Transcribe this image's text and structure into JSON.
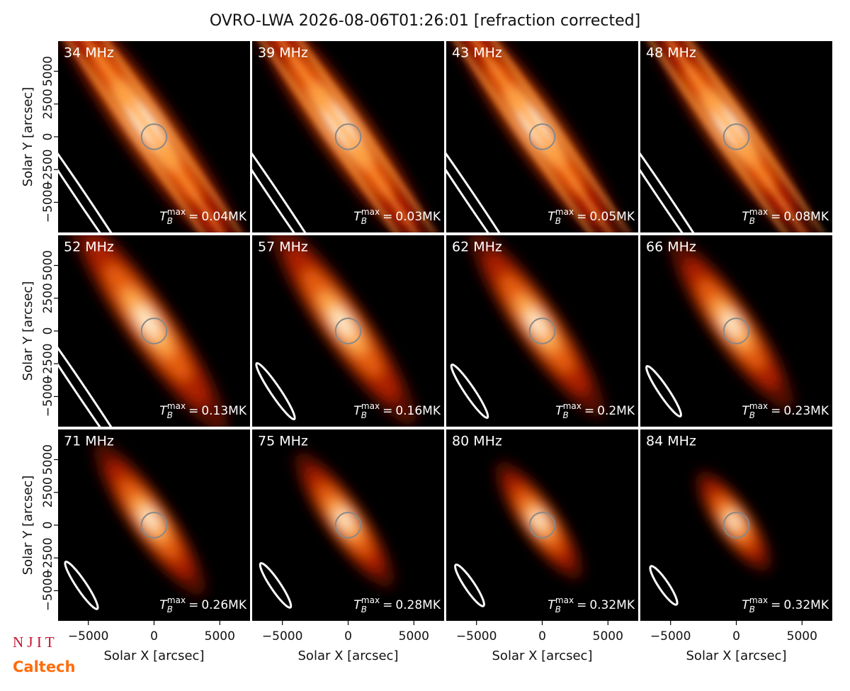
{
  "chart_data": {
    "type": "image-grid",
    "title": "OVRO-LWA 2026-08-06T01:26:01 [refraction corrected]",
    "xlabel": "Solar X [arcsec]",
    "ylabel": "Solar Y [arcsec]",
    "xlim": [
      -7300,
      7300
    ],
    "ylim": [
      -7300,
      7300
    ],
    "xticks": [
      {
        "value": -5000,
        "label": "−5000"
      },
      0,
      5000
    ],
    "yticks": [
      {
        "value": -5000,
        "label": "−5000"
      },
      {
        "value": -2500,
        "label": "−2500"
      },
      0,
      2500,
      5000
    ],
    "tb_symbol": "T",
    "tb_sub": "B",
    "tb_sup": "max",
    "tb_eq": "=",
    "panels": [
      {
        "label": "34 MHz",
        "tb_max_label": "0.04MK"
      },
      {
        "label": "39 MHz",
        "tb_max_label": "0.03MK"
      },
      {
        "label": "43 MHz",
        "tb_max_label": "0.05MK"
      },
      {
        "label": "48 MHz",
        "tb_max_label": "0.08MK"
      },
      {
        "label": "52 MHz",
        "tb_max_label": "0.13MK"
      },
      {
        "label": "57 MHz",
        "tb_max_label": "0.16MK"
      },
      {
        "label": "62 MHz",
        "tb_max_label": "0.2MK"
      },
      {
        "label": "66 MHz",
        "tb_max_label": "0.23MK"
      },
      {
        "label": "71 MHz",
        "tb_max_label": "0.26MK"
      },
      {
        "label": "75 MHz",
        "tb_max_label": "0.28MK"
      },
      {
        "label": "80 MHz",
        "tb_max_label": "0.32MK"
      },
      {
        "label": "84 MHz",
        "tb_max_label": "0.32MK"
      }
    ]
  },
  "logos": [
    "N J I T",
    "Caltech"
  ]
}
